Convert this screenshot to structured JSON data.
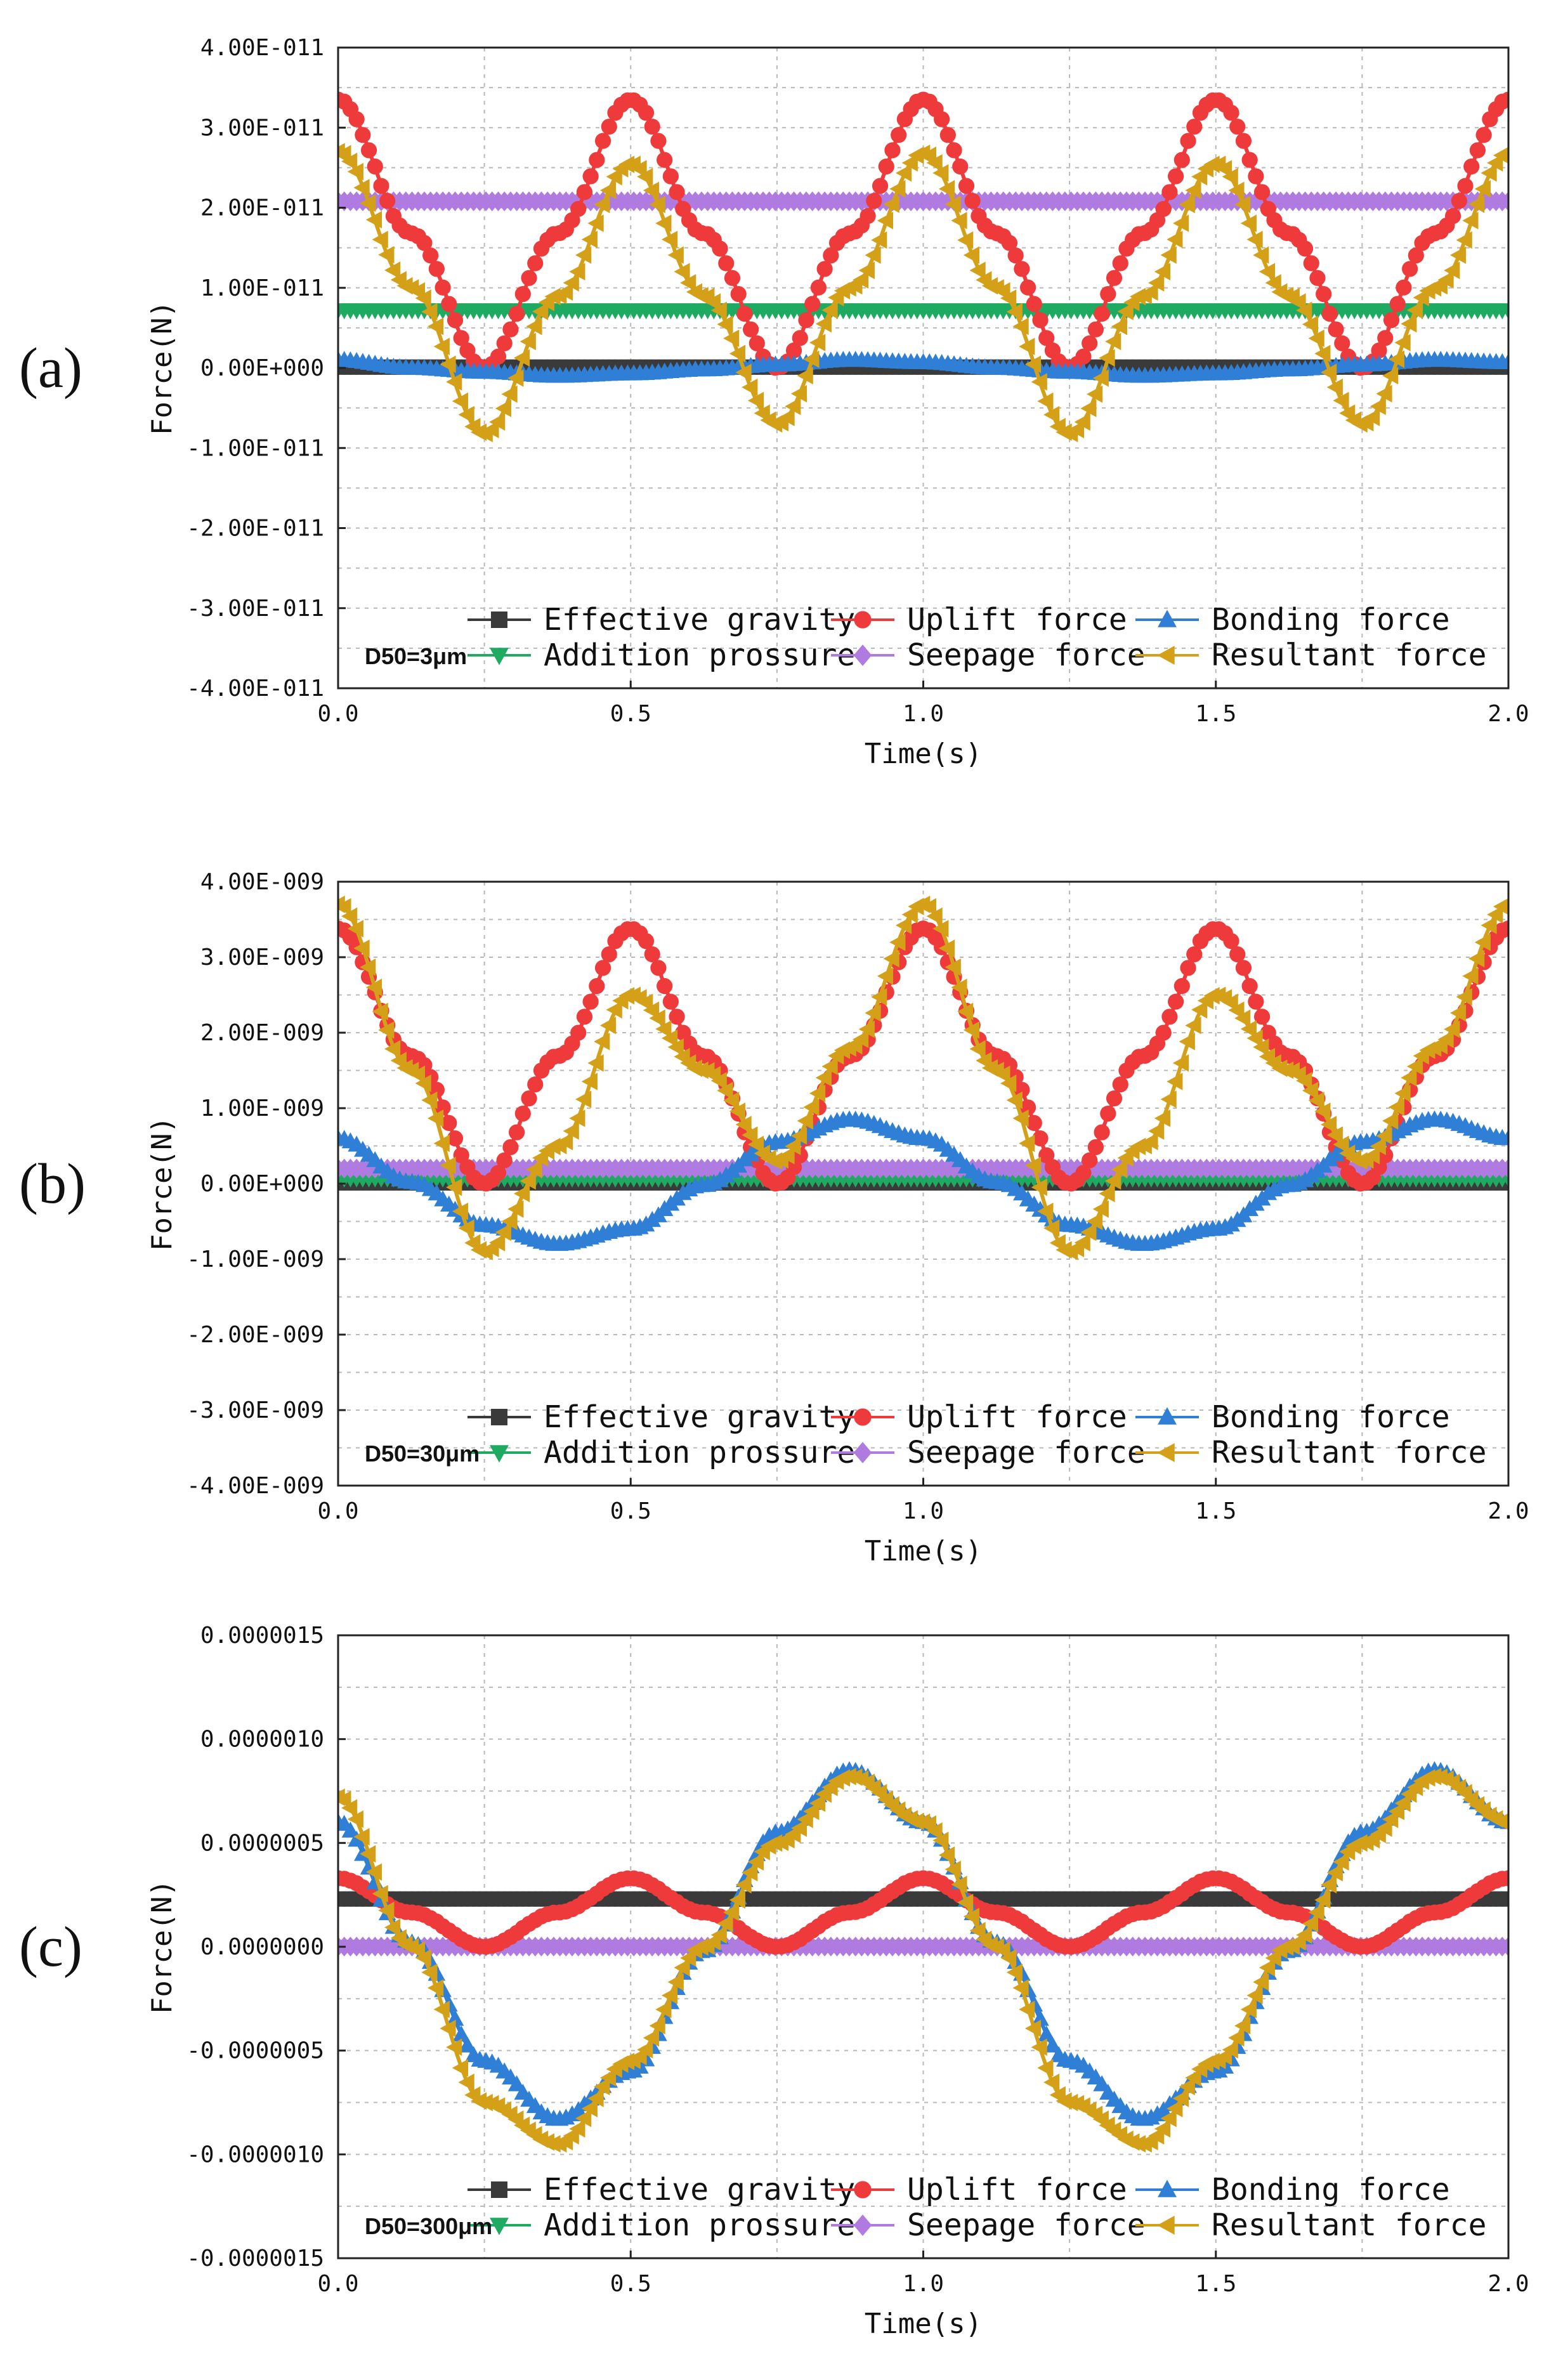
{
  "chart_data": [
    {
      "type": "line",
      "panel_label": "(a)",
      "annotation": "D50=3μm",
      "xlabel": "Time(s)",
      "ylabel": "Force(N)",
      "xlim": [
        0,
        2
      ],
      "ylim": [
        -4e-11,
        4e-11
      ],
      "x_ticks": [
        0,
        0.5,
        1,
        1.5,
        2
      ],
      "x_tick_labels": [
        "0.0",
        "0.5",
        "1.0",
        "1.5",
        "2.0"
      ],
      "y_ticks": [
        4e-11,
        3e-11,
        2e-11,
        1e-11,
        0,
        -1e-11,
        -2e-11,
        -3e-11,
        -4e-11
      ],
      "y_tick_labels": [
        "4.00E-011",
        "3.00E-011",
        "2.00E-011",
        "1.00E-011",
        "0.00E+000",
        "-1.00E-011",
        "-2.00E-011",
        "-3.00E-011",
        "-4.00E-011"
      ],
      "grid": true,
      "legend_position": "bottom-center",
      "series": [
        {
          "name": "Effective gravity",
          "marker": "square",
          "color": "#3a3a3a",
          "values": [
            [
              0,
              1e-13
            ],
            [
              2,
              1e-13
            ]
          ]
        },
        {
          "name": "Uplift force",
          "marker": "circle",
          "color": "#ee3a3a",
          "values": [
            [
              0,
              3.35e-11
            ],
            [
              0.125,
              1.68e-11
            ],
            [
              0.25,
              0
            ],
            [
              0.375,
              1.68e-11
            ],
            [
              0.5,
              3.35e-11
            ],
            [
              0.625,
              1.68e-11
            ],
            [
              0.75,
              0
            ],
            [
              0.875,
              1.68e-11
            ],
            [
              1,
              3.35e-11
            ],
            [
              1.125,
              1.68e-11
            ],
            [
              1.25,
              0
            ],
            [
              1.375,
              1.68e-11
            ],
            [
              1.5,
              3.35e-11
            ],
            [
              1.625,
              1.68e-11
            ],
            [
              1.75,
              0
            ],
            [
              1.875,
              1.68e-11
            ],
            [
              2,
              3.35e-11
            ]
          ]
        },
        {
          "name": "Bonding force",
          "marker": "triangle-up",
          "color": "#2f7fd6",
          "values": [
            [
              0,
              1e-12
            ],
            [
              0.125,
              0
            ],
            [
              0.25,
              -5e-13
            ],
            [
              0.375,
              -1e-12
            ],
            [
              0.5,
              -7e-13
            ],
            [
              0.625,
              -2e-13
            ],
            [
              0.75,
              4e-13
            ],
            [
              0.875,
              1e-12
            ],
            [
              1,
              7e-13
            ],
            [
              1.125,
              0
            ],
            [
              1.25,
              -5e-13
            ],
            [
              1.375,
              -1e-12
            ],
            [
              1.5,
              -7e-13
            ],
            [
              1.625,
              -2e-13
            ],
            [
              1.75,
              4e-13
            ],
            [
              1.875,
              1e-12
            ],
            [
              2,
              7e-13
            ]
          ]
        },
        {
          "name": "Addition prossure",
          "marker": "triangle-down",
          "color": "#1faa62",
          "values": [
            [
              0,
              7.2e-12
            ],
            [
              2,
              7.2e-12
            ]
          ]
        },
        {
          "name": "Seepage force",
          "marker": "diamond",
          "color": "#b07be0",
          "values": [
            [
              0,
              2.08e-11
            ],
            [
              2,
              2.08e-11
            ]
          ]
        },
        {
          "name": "Resultant force",
          "marker": "triangle-left",
          "color": "#d4a017",
          "values": [
            [
              0,
              2.7e-11
            ],
            [
              0.125,
              1e-11
            ],
            [
              0.25,
              -8.2e-12
            ],
            [
              0.375,
              9e-12
            ],
            [
              0.5,
              2.55e-11
            ],
            [
              0.625,
              9e-12
            ],
            [
              0.75,
              -7e-12
            ],
            [
              0.875,
              1e-11
            ],
            [
              1,
              2.68e-11
            ],
            [
              1.125,
              1e-11
            ],
            [
              1.25,
              -8.2e-12
            ],
            [
              1.375,
              9e-12
            ],
            [
              1.5,
              2.55e-11
            ],
            [
              1.625,
              9e-12
            ],
            [
              1.75,
              -7e-12
            ],
            [
              1.875,
              1e-11
            ],
            [
              2,
              2.68e-11
            ]
          ]
        }
      ]
    },
    {
      "type": "line",
      "panel_label": "(b)",
      "annotation": "D50=30μm",
      "xlabel": "Time(s)",
      "ylabel": "Force(N)",
      "xlim": [
        0,
        2
      ],
      "ylim": [
        -4e-09,
        4e-09
      ],
      "x_ticks": [
        0,
        0.5,
        1,
        1.5,
        2
      ],
      "x_tick_labels": [
        "0.0",
        "0.5",
        "1.0",
        "1.5",
        "2.0"
      ],
      "y_ticks": [
        4e-09,
        3e-09,
        2e-09,
        1e-09,
        0,
        -1e-09,
        -2e-09,
        -3e-09,
        -4e-09
      ],
      "y_tick_labels": [
        "4.00E-009",
        "3.00E-009",
        "2.00E-009",
        "1.00E-009",
        "0.00E+000",
        "-1.00E-009",
        "-2.00E-009",
        "-3.00E-009",
        "-4.00E-009"
      ],
      "grid": true,
      "legend_position": "bottom-center",
      "series": [
        {
          "name": "Effective gravity",
          "marker": "square",
          "color": "#3a3a3a",
          "values": [
            [
              0,
              1e-11
            ],
            [
              2,
              1e-11
            ]
          ]
        },
        {
          "name": "Uplift force",
          "marker": "circle",
          "color": "#ee3a3a",
          "values": [
            [
              0,
              3.38e-09
            ],
            [
              0.125,
              1.69e-09
            ],
            [
              0.25,
              0
            ],
            [
              0.375,
              1.69e-09
            ],
            [
              0.5,
              3.38e-09
            ],
            [
              0.625,
              1.69e-09
            ],
            [
              0.75,
              0
            ],
            [
              0.875,
              1.69e-09
            ],
            [
              1,
              3.38e-09
            ],
            [
              1.125,
              1.69e-09
            ],
            [
              1.25,
              0
            ],
            [
              1.375,
              1.69e-09
            ],
            [
              1.5,
              3.38e-09
            ],
            [
              1.625,
              1.69e-09
            ],
            [
              1.75,
              0
            ],
            [
              1.875,
              1.69e-09
            ],
            [
              2,
              3.38e-09
            ]
          ]
        },
        {
          "name": "Bonding force",
          "marker": "triangle-up",
          "color": "#2f7fd6",
          "values": [
            [
              0,
              6e-10
            ],
            [
              0.125,
              2e-11
            ],
            [
              0.25,
              -5.5e-10
            ],
            [
              0.375,
              -8e-10
            ],
            [
              0.5,
              -6e-10
            ],
            [
              0.625,
              -2e-11
            ],
            [
              0.75,
              5.5e-10
            ],
            [
              0.875,
              8.5e-10
            ],
            [
              1,
              6e-10
            ],
            [
              1.125,
              2e-11
            ],
            [
              1.25,
              -5.5e-10
            ],
            [
              1.375,
              -8e-10
            ],
            [
              1.5,
              -6e-10
            ],
            [
              1.625,
              -2e-11
            ],
            [
              1.75,
              5.5e-10
            ],
            [
              1.875,
              8.5e-10
            ],
            [
              2,
              6e-10
            ]
          ]
        },
        {
          "name": "Addition prossure",
          "marker": "triangle-down",
          "color": "#1faa62",
          "values": [
            [
              0,
              7e-11
            ],
            [
              2,
              7e-11
            ]
          ]
        },
        {
          "name": "Seepage force",
          "marker": "diamond",
          "color": "#b07be0",
          "values": [
            [
              0,
              2e-10
            ],
            [
              2,
              2e-10
            ]
          ]
        },
        {
          "name": "Resultant force",
          "marker": "triangle-left",
          "color": "#d4a017",
          "values": [
            [
              0,
              3.7e-09
            ],
            [
              0.125,
              1.5e-09
            ],
            [
              0.25,
              -9e-10
            ],
            [
              0.375,
              5e-10
            ],
            [
              0.5,
              2.5e-09
            ],
            [
              0.625,
              1.5e-09
            ],
            [
              0.75,
              3e-10
            ],
            [
              0.875,
              1.8e-09
            ],
            [
              1,
              3.7e-09
            ],
            [
              1.125,
              1.5e-09
            ],
            [
              1.25,
              -9e-10
            ],
            [
              1.375,
              5e-10
            ],
            [
              1.5,
              2.5e-09
            ],
            [
              1.625,
              1.5e-09
            ],
            [
              1.75,
              3e-10
            ],
            [
              1.875,
              1.8e-09
            ],
            [
              2,
              3.7e-09
            ]
          ]
        }
      ]
    },
    {
      "type": "line",
      "panel_label": "(c)",
      "annotation": "D50=300μm",
      "xlabel": "Time(s)",
      "ylabel": "Force(N)",
      "xlim": [
        0,
        2
      ],
      "ylim": [
        -1.5e-06,
        1.5e-06
      ],
      "x_ticks": [
        0,
        0.5,
        1,
        1.5,
        2
      ],
      "x_tick_labels": [
        "0.0",
        "0.5",
        "1.0",
        "1.5",
        "2.0"
      ],
      "y_ticks": [
        1.5e-06,
        1e-06,
        5e-07,
        0,
        -5e-07,
        -1e-06,
        -1.5e-06
      ],
      "y_tick_labels": [
        "0.0000015",
        "0.0000010",
        "0.0000005",
        "0.0000000",
        "-0.0000005",
        "-0.0000010",
        "-0.0000015"
      ],
      "grid": true,
      "legend_position": "bottom-center",
      "series": [
        {
          "name": "Effective gravity",
          "marker": "square",
          "color": "#3a3a3a",
          "values": [
            [
              0,
              2.3e-07
            ],
            [
              2,
              2.3e-07
            ]
          ]
        },
        {
          "name": "Uplift force",
          "marker": "circle",
          "color": "#ee3a3a",
          "values": [
            [
              0,
              3.3e-07
            ],
            [
              0.125,
              1.65e-07
            ],
            [
              0.25,
              0
            ],
            [
              0.375,
              1.65e-07
            ],
            [
              0.5,
              3.3e-07
            ],
            [
              0.625,
              1.65e-07
            ],
            [
              0.75,
              0
            ],
            [
              0.875,
              1.65e-07
            ],
            [
              1,
              3.3e-07
            ],
            [
              1.125,
              1.65e-07
            ],
            [
              1.25,
              0
            ],
            [
              1.375,
              1.65e-07
            ],
            [
              1.5,
              3.3e-07
            ],
            [
              1.625,
              1.65e-07
            ],
            [
              1.75,
              0
            ],
            [
              1.875,
              1.65e-07
            ],
            [
              2,
              3.3e-07
            ]
          ]
        },
        {
          "name": "Bonding force",
          "marker": "triangle-up",
          "color": "#2f7fd6",
          "values": [
            [
              0,
              6e-07
            ],
            [
              0.125,
              2e-08
            ],
            [
              0.25,
              -5.5e-07
            ],
            [
              0.375,
              -8.3e-07
            ],
            [
              0.5,
              -6e-07
            ],
            [
              0.625,
              -2e-08
            ],
            [
              0.75,
              5.5e-07
            ],
            [
              0.875,
              8.5e-07
            ],
            [
              1,
              6e-07
            ],
            [
              1.125,
              2e-08
            ],
            [
              1.25,
              -5.5e-07
            ],
            [
              1.375,
              -8.3e-07
            ],
            [
              1.5,
              -6e-07
            ],
            [
              1.625,
              -2e-08
            ],
            [
              1.75,
              5.5e-07
            ],
            [
              1.875,
              8.5e-07
            ],
            [
              2,
              6e-07
            ]
          ]
        },
        {
          "name": "Addition prossure",
          "marker": "triangle-down",
          "color": "#1faa62",
          "values": [
            [
              0,
              0.0
            ],
            [
              2,
              0.0
            ]
          ]
        },
        {
          "name": "Seepage force",
          "marker": "diamond",
          "color": "#b07be0",
          "values": [
            [
              0,
              1e-09
            ],
            [
              2,
              1e-09
            ]
          ]
        },
        {
          "name": "Resultant force",
          "marker": "triangle-left",
          "color": "#d4a017",
          "values": [
            [
              0,
              7.2e-07
            ],
            [
              0.125,
              0.0
            ],
            [
              0.25,
              -7.5e-07
            ],
            [
              0.375,
              -9.5e-07
            ],
            [
              0.5,
              -5.5e-07
            ],
            [
              0.625,
              0.0
            ],
            [
              0.75,
              5e-07
            ],
            [
              0.875,
              8.2e-07
            ],
            [
              1,
              6e-07
            ],
            [
              1.125,
              0.0
            ],
            [
              1.25,
              -7.5e-07
            ],
            [
              1.375,
              -9.5e-07
            ],
            [
              1.5,
              -5.5e-07
            ],
            [
              1.625,
              0.0
            ],
            [
              1.75,
              5e-07
            ],
            [
              1.875,
              8.2e-07
            ],
            [
              2,
              6e-07
            ]
          ]
        }
      ]
    }
  ]
}
